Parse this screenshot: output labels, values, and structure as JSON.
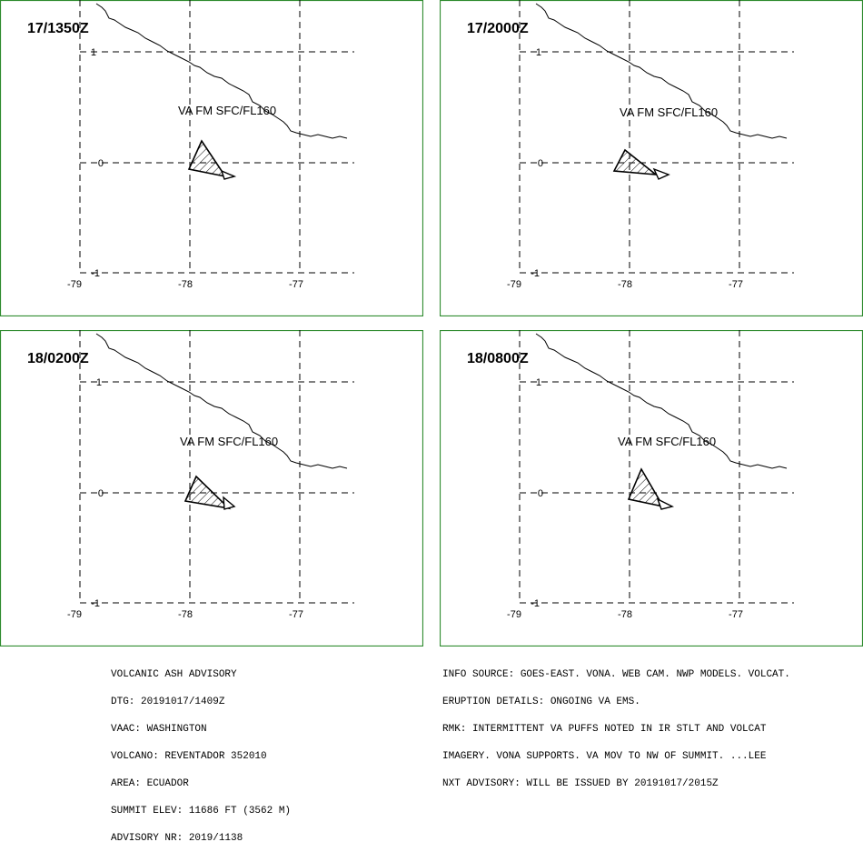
{
  "panels": [
    {
      "time": "17/1350Z",
      "level_label": "VA FM SFC/FL160"
    },
    {
      "time": "17/2000Z",
      "level_label": "VA FM SFC/FL160"
    },
    {
      "time": "18/0200Z",
      "level_label": "VA FM SFC/FL160"
    },
    {
      "time": "18/0800Z",
      "level_label": "VA FM SFC/FL160"
    }
  ],
  "axes": {
    "lon_labels": [
      "-79",
      "-78",
      "-77"
    ],
    "lat_labels": [
      "1",
      "0",
      "-1"
    ]
  },
  "advisory_left": [
    "VOLCANIC ASH ADVISORY",
    "DTG: 20191017/1409Z",
    "VAAC: WASHINGTON",
    "VOLCANO: REVENTADOR 352010",
    "AREA: ECUADOR",
    "SUMMIT ELEV: 11686 FT (3562 M)",
    "ADVISORY NR: 2019/1138"
  ],
  "advisory_right": [
    "INFO SOURCE: GOES-EAST. VONA. WEB CAM. NWP MODELS. VOLCAT.",
    "ERUPTION DETAILS: ONGOING VA EMS.",
    "RMK: INTERMITTENT VA PUFFS NOTED IN IR STLT AND VOLCAT",
    "IMAGERY. VONA SUPPORTS. VA MOV TO NW OF SUMMIT. ...LEE",
    "NXT ADVISORY: WILL BE ISSUED BY 20191017/2015Z"
  ],
  "colors": {
    "frame": "#2e8b2e"
  }
}
